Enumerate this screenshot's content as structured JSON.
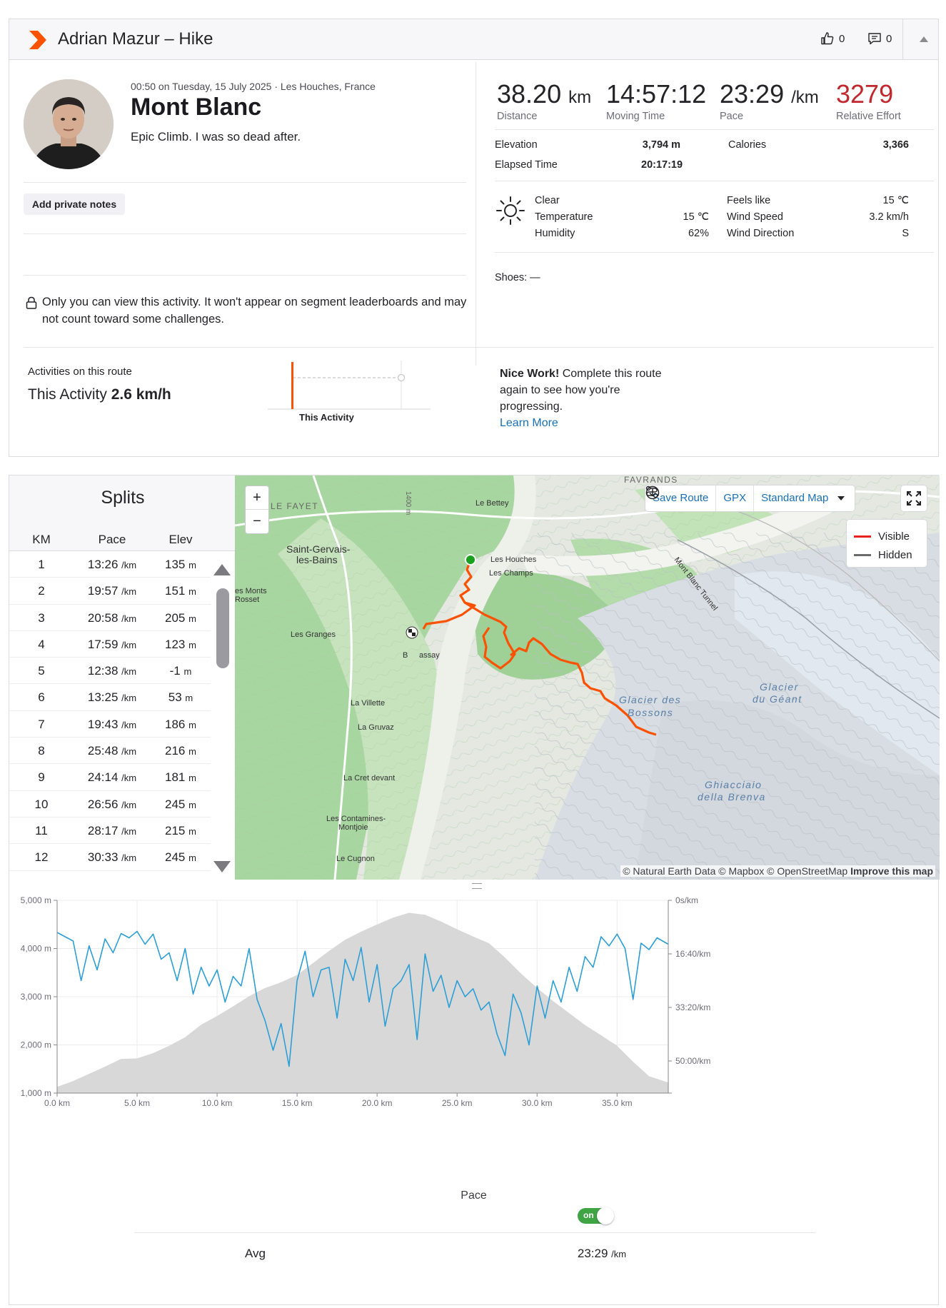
{
  "header": {
    "title": "Adrian Mazur – Hike",
    "kudos_count": "0",
    "comment_count": "0"
  },
  "activity": {
    "meta": "00:50 on Tuesday, 15 July 2025 · Les Houches, France",
    "name": "Mont Blanc",
    "description": "Epic Climb. I was so dead after.",
    "notes_button": "Add private notes",
    "privacy_text": "Only you can view this activity. It won't appear on segment leaderboards and may not count toward some challenges."
  },
  "stats": {
    "distance": {
      "value": "38.20",
      "unit": "km",
      "label": "Distance"
    },
    "moving_time": {
      "value": "14:57:12",
      "label": "Moving Time"
    },
    "pace": {
      "value": "23:29",
      "unit": "/km",
      "label": "Pace"
    },
    "relative_effort": {
      "value": "3279",
      "label": "Relative Effort"
    },
    "elevation_label": "Elevation",
    "elevation_value": "3,794 m",
    "calories_label": "Calories",
    "calories_value": "3,366",
    "elapsed_label": "Elapsed Time",
    "elapsed_value": "20:17:19"
  },
  "weather": {
    "condition": "Clear",
    "temperature_label": "Temperature",
    "temperature_value": "15 ℃",
    "humidity_label": "Humidity",
    "humidity_value": "62%",
    "feels_label": "Feels like",
    "feels_value": "15 ℃",
    "wind_speed_label": "Wind Speed",
    "wind_speed_value": "3.2 km/h",
    "wind_dir_label": "Wind Direction",
    "wind_dir_value": "S"
  },
  "shoes": "Shoes: —",
  "route": {
    "label": "Activities on this route",
    "this_activity": "This Activity",
    "speed": "2.6 km/h",
    "chart_label": "This Activity",
    "nice_bold": "Nice Work!",
    "nice_text": " Complete this route again to see how you're progressing.",
    "learn_more": "Learn More"
  },
  "splits": {
    "title": "Splits",
    "headers": [
      "KM",
      "Pace",
      "Elev"
    ],
    "pace_unit": "/km",
    "elev_unit": "m",
    "rows": [
      {
        "km": "1",
        "pace": "13:26",
        "elev": "135"
      },
      {
        "km": "2",
        "pace": "19:57",
        "elev": "151"
      },
      {
        "km": "3",
        "pace": "20:58",
        "elev": "205"
      },
      {
        "km": "4",
        "pace": "17:59",
        "elev": "123"
      },
      {
        "km": "5",
        "pace": "12:38",
        "elev": "-1"
      },
      {
        "km": "6",
        "pace": "13:25",
        "elev": "53"
      },
      {
        "km": "7",
        "pace": "19:43",
        "elev": "186"
      },
      {
        "km": "8",
        "pace": "25:48",
        "elev": "216"
      },
      {
        "km": "9",
        "pace": "24:14",
        "elev": "181"
      },
      {
        "km": "10",
        "pace": "26:56",
        "elev": "245"
      },
      {
        "km": "11",
        "pace": "28:17",
        "elev": "215"
      },
      {
        "km": "12",
        "pace": "30:33",
        "elev": "245"
      }
    ]
  },
  "map": {
    "save_route": "Save Route",
    "gpx": "GPX",
    "map_type": "Standard Map",
    "legend_visible": "Visible",
    "legend_hidden": "Hidden",
    "route_color": "#fc5200",
    "attribution_prefix": "© Natural Earth Data © Mapbox © OpenStreetMap",
    "attribution_link": "Improve this map",
    "places": [
      "FAVRANDS",
      "LE FAYET",
      "Le Bettey",
      "Saint-Gervais-",
      "les-Bains",
      "Les Houches",
      "Les Champs",
      "es Monts",
      "Rosset",
      "Les Granges",
      "B",
      "assay",
      "La Villette",
      "La Gruvaz",
      "La Cret devant",
      "Les Contamines-",
      "Montjoie",
      "Le Cugnon",
      "Mont Blanc Tunnel",
      "Glacier des",
      "Bossons",
      "Glacier",
      "du Géant",
      "Ghiacciaio",
      "della Brenva",
      "1400 m"
    ]
  },
  "chart_data": {
    "type": "area",
    "x_label_unit": "km",
    "x_ticks": [
      "0.0 km",
      "5.0 km",
      "10.0 km",
      "15.0 km",
      "20.0 km",
      "25.0 km",
      "30.0 km",
      "35.0 km"
    ],
    "y_left_ticks": [
      "5,000 m",
      "4,000 m",
      "3,000 m",
      "2,000 m",
      "1,000 m"
    ],
    "y_right_ticks": [
      "0s/km",
      "16:40/km",
      "33:20/km",
      "50:00/km"
    ],
    "xlim": [
      0,
      38.2
    ],
    "ylim_left": [
      1000,
      5000
    ],
    "ylim_right_seconds": [
      0,
      3600
    ],
    "elevation_color": "#d8d8d8",
    "pace_color": "#2e9fd6",
    "series": [
      {
        "name": "Elevation",
        "x": [
          0,
          1,
          2,
          3,
          4,
          5,
          6,
          7,
          8,
          9,
          10,
          11,
          12,
          13,
          14,
          15,
          16,
          17,
          18,
          19,
          20,
          21,
          22,
          23,
          24,
          25,
          26,
          27,
          28,
          29,
          30,
          31,
          32,
          33,
          34,
          35,
          36,
          37,
          38.2
        ],
        "y": [
          1130,
          1250,
          1400,
          1550,
          1710,
          1720,
          1830,
          1980,
          2160,
          2420,
          2600,
          2800,
          3010,
          3180,
          3300,
          3450,
          3700,
          3950,
          4180,
          4350,
          4500,
          4640,
          4740,
          4700,
          4560,
          4400,
          4250,
          4110,
          3810,
          3480,
          3180,
          2910,
          2660,
          2410,
          2200,
          1980,
          1650,
          1350,
          1220
        ]
      },
      {
        "name": "Pace",
        "x": [
          0,
          1,
          1.5,
          2,
          2.5,
          3,
          3.5,
          4,
          4.5,
          5,
          5.5,
          6,
          6.5,
          7,
          7.5,
          8,
          8.5,
          9,
          9.5,
          10,
          10.5,
          11,
          11.5,
          12,
          12.5,
          13,
          13.5,
          14,
          14.5,
          15,
          15.5,
          16,
          16.5,
          17,
          17.5,
          18,
          18.5,
          19,
          19.5,
          20,
          20.5,
          21,
          21.5,
          22,
          22.5,
          23,
          23.5,
          24,
          24.5,
          25,
          25.5,
          26,
          26.5,
          27,
          27.5,
          28,
          28.5,
          29,
          29.5,
          30,
          30.5,
          31,
          31.5,
          32,
          32.5,
          33,
          33.5,
          34,
          34.5,
          35,
          35.5,
          36,
          36.5,
          37,
          37.5,
          38.2
        ],
        "y": [
          600,
          760,
          1500,
          850,
          1300,
          720,
          980,
          620,
          700,
          580,
          820,
          630,
          1100,
          980,
          1500,
          900,
          1750,
          1250,
          1600,
          1300,
          1900,
          1420,
          1600,
          900,
          1850,
          2250,
          2800,
          2300,
          3100,
          1500,
          950,
          1800,
          1300,
          1250,
          2200,
          1100,
          1500,
          880,
          1900,
          1200,
          2350,
          1650,
          1500,
          1200,
          2600,
          1000,
          1700,
          1400,
          2000,
          1500,
          1800,
          1650,
          2050,
          1900,
          2500,
          2900,
          1750,
          2100,
          2700,
          1600,
          2200,
          1500,
          1900,
          1250,
          1700,
          1050,
          1250,
          680,
          850,
          630,
          900,
          1850,
          800,
          920,
          700,
          820
        ]
      }
    ]
  },
  "pace_toggle": {
    "label": "Pace",
    "state": "on"
  },
  "summary": {
    "avg_label": "Avg",
    "avg_value": "23:29",
    "avg_unit": "/km"
  }
}
